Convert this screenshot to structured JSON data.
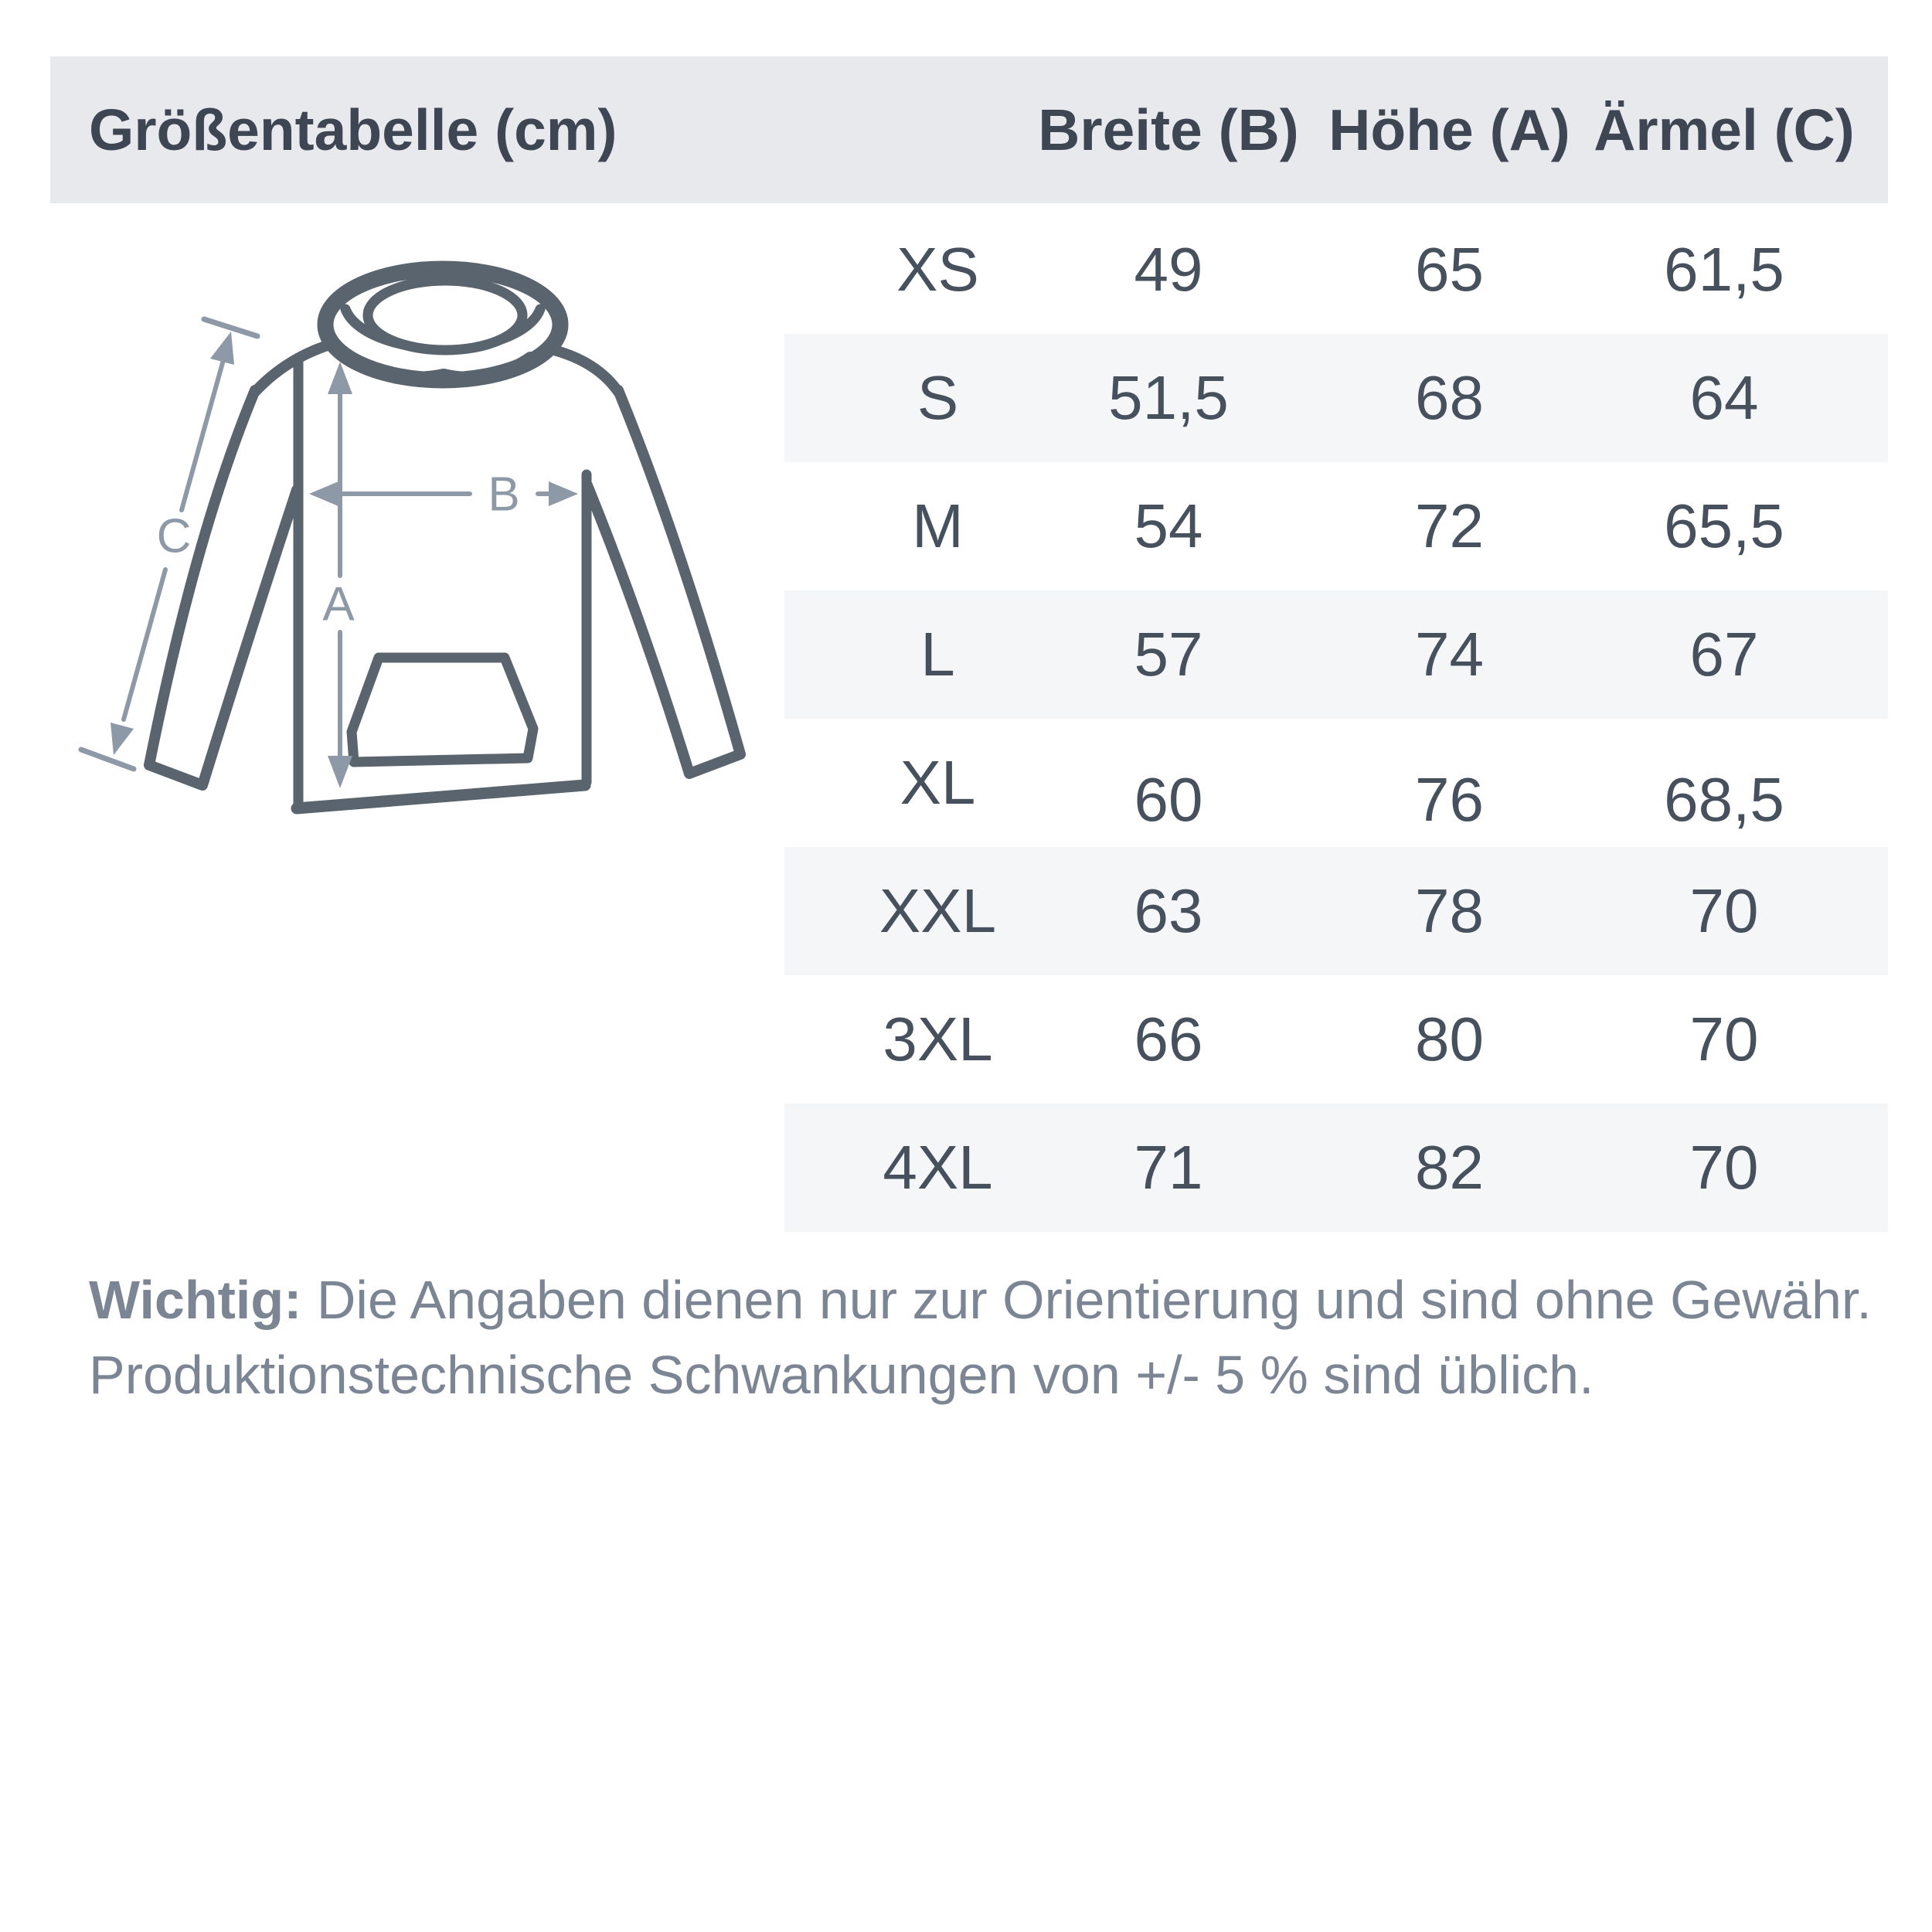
{
  "theme": {
    "header_bg": "#e8e9ed",
    "stripe": "#f5f6f8",
    "ink_strong": "#3e4654",
    "ink": "#47505d",
    "muted": "#7b8594",
    "outline": "#5a646e",
    "arrow": "#8d99a7",
    "page_bg": "#ffffff"
  },
  "header": {
    "title": "Größentabelle (cm)",
    "col_breite": "Breite (B)",
    "col_hoehe": "Höhe (A)",
    "col_aermel": "Ärmel (C)"
  },
  "table": {
    "rows": [
      {
        "size": "XS",
        "breite": "49",
        "hoehe": "65",
        "aermel": "61,5"
      },
      {
        "size": "S",
        "breite": "51,5",
        "hoehe": "68",
        "aermel": "64"
      },
      {
        "size": "M",
        "breite": "54",
        "hoehe": "72",
        "aermel": "65,5"
      },
      {
        "size": "L",
        "breite": "57",
        "hoehe": "74",
        "aermel": "67"
      },
      {
        "size": "XL",
        "breite": "60",
        "hoehe": "76",
        "aermel": "68,5"
      },
      {
        "size": "XXL",
        "breite": "63",
        "hoehe": "78",
        "aermel": "70"
      },
      {
        "size": "3XL",
        "breite": "66",
        "hoehe": "80",
        "aermel": "70"
      },
      {
        "size": "4XL",
        "breite": "71",
        "hoehe": "82",
        "aermel": "70"
      }
    ]
  },
  "diagram": {
    "labels": {
      "a": "A",
      "b": "B",
      "c": "C"
    }
  },
  "note": {
    "bold": "Wichtig:",
    "line1_rest": " Die Angaben dienen nur zur Orientierung und sind ohne Gewähr.",
    "line2": "Produktionstechnische Schwankungen von +/- 5 % sind üblich."
  }
}
